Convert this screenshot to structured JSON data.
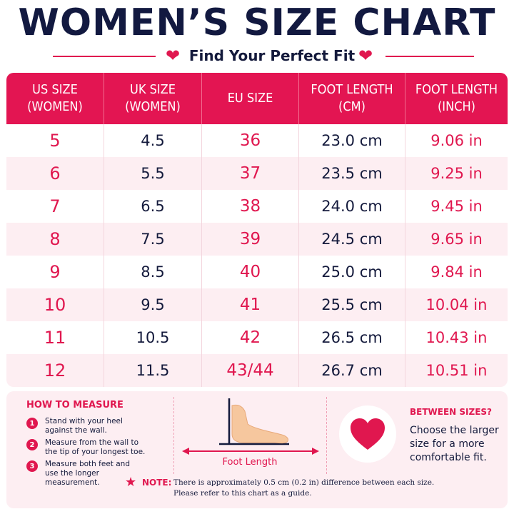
{
  "header": {
    "title": "WOMEN’S SIZE CHART",
    "subtitle": "Find Your Perfect Fit",
    "accent_color": "#e0174f",
    "heart_icon": "heart-icon"
  },
  "table": {
    "columns": [
      "US SIZE\n(WOMEN)",
      "UK SIZE\n(WOMEN)",
      "EU SIZE",
      "FOOT LENGTH\n(CM)",
      "FOOT LENGTH\n(INCH)"
    ],
    "rows": [
      {
        "us": "5",
        "uk": "4.5",
        "eu": "36",
        "cm": "23.0 cm",
        "inch": "9.06 in"
      },
      {
        "us": "6",
        "uk": "5.5",
        "eu": "37",
        "cm": "23.5 cm",
        "inch": "9.25 in"
      },
      {
        "us": "7",
        "uk": "6.5",
        "eu": "38",
        "cm": "24.0 cm",
        "inch": "9.45 in"
      },
      {
        "us": "8",
        "uk": "7.5",
        "eu": "39",
        "cm": "24.5 cm",
        "inch": "9.65 in"
      },
      {
        "us": "9",
        "uk": "8.5",
        "eu": "40",
        "cm": "25.0 cm",
        "inch": "9.84 in"
      },
      {
        "us": "10",
        "uk": "9.5",
        "eu": "41",
        "cm": "25.5 cm",
        "inch": "10.04 in"
      },
      {
        "us": "11",
        "uk": "10.5",
        "eu": "42",
        "cm": "26.5 cm",
        "inch": "10.43 in"
      },
      {
        "us": "12",
        "uk": "11.5",
        "eu": "43/44",
        "cm": "26.7 cm",
        "inch": "10.51 in"
      }
    ]
  },
  "how_to_measure": {
    "title": "HOW TO MEASURE",
    "steps": [
      {
        "num": "1",
        "text": "Stand with your heel\nagainst the wall."
      },
      {
        "num": "2",
        "text": "Measure from the wall to\nthe tip of your longest toe."
      },
      {
        "num": "3",
        "text": "Measure both feet and\nuse the longer\nmeasurement."
      }
    ]
  },
  "diagram": {
    "label": "Foot Length",
    "icon": "foot-icon"
  },
  "between_sizes": {
    "title": "BETWEEN SIZES?",
    "text": "Choose the larger\nsize for a more\ncomfortable fit.",
    "icon": "heart-icon"
  },
  "note": {
    "label": "NOTE:",
    "text": "There is approximately 0.5 cm (0.2 in) difference between each size.\nPlease refer to this chart as a guide.",
    "icon": "star-icon"
  }
}
